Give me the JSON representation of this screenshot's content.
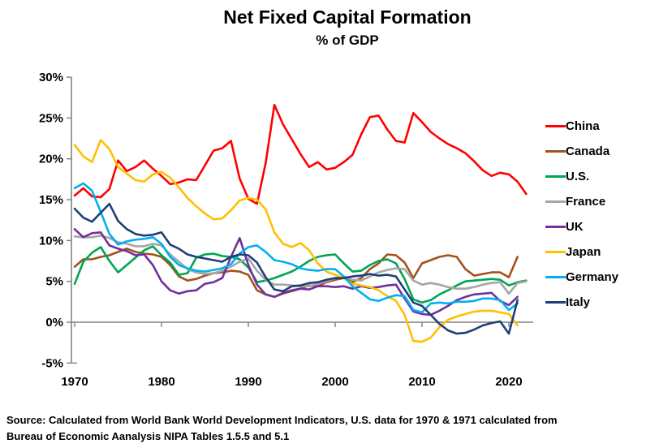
{
  "title": "Net Fixed Capital Formation",
  "subtitle": "% of GDP",
  "source": {
    "line1": "Source:  Calculated from World Bank World Development Indicators, U.S. data for 1970 & 1971 calculated from",
    "line2": "Bureau of Economic Aanalysis NIPA Tables 1.5.5 and 5.1"
  },
  "axis_color": "#808080",
  "chart_data": {
    "type": "line",
    "title": "Net Fixed Capital Formation",
    "subtitle": "% of GDP",
    "xlabel": "",
    "ylabel": "",
    "xlim": [
      1970,
      2022
    ],
    "ylim": [
      -5,
      30
    ],
    "grid": false,
    "legend_position": "right",
    "zero_line": true,
    "x_ticks": [
      1970,
      1980,
      1990,
      2000,
      2010,
      2020
    ],
    "x_tick_labels": [
      "1970",
      "1980",
      "1990",
      "2000",
      "2010",
      "2020"
    ],
    "y_ticks": [
      30,
      25,
      20,
      15,
      10,
      5,
      0,
      -5
    ],
    "y_tick_labels": [
      "30%",
      "25%",
      "20%",
      "15%",
      "10%",
      "5%",
      "0%",
      "-5%"
    ],
    "x": [
      1970,
      1971,
      1972,
      1973,
      1974,
      1975,
      1976,
      1977,
      1978,
      1979,
      1980,
      1981,
      1982,
      1983,
      1984,
      1985,
      1986,
      1987,
      1988,
      1989,
      1990,
      1991,
      1992,
      1993,
      1994,
      1995,
      1996,
      1997,
      1998,
      1999,
      2000,
      2001,
      2002,
      2003,
      2004,
      2005,
      2006,
      2007,
      2008,
      2009,
      2010,
      2011,
      2012,
      2013,
      2014,
      2015,
      2016,
      2017,
      2018,
      2019,
      2020,
      2021,
      2022
    ],
    "series": [
      {
        "name": "China",
        "color": "#FF0000",
        "values": [
          15.5,
          16.4,
          15.4,
          15.3,
          16.3,
          19.8,
          18.5,
          19.0,
          19.8,
          18.8,
          17.9,
          16.9,
          17.1,
          17.5,
          17.4,
          19.2,
          21.0,
          21.3,
          22.2,
          17.6,
          15.1,
          14.5,
          19.5,
          26.6,
          24.2,
          22.4,
          20.6,
          19.0,
          19.6,
          18.7,
          18.9,
          19.6,
          20.5,
          23.0,
          25.1,
          25.3,
          23.6,
          22.2,
          22.0,
          25.6,
          24.5,
          23.3,
          22.5,
          21.8,
          21.3,
          20.7,
          19.7,
          18.6,
          17.9,
          18.3,
          18.1,
          17.2,
          15.7
        ]
      },
      {
        "name": "Canada",
        "color": "#A0521D",
        "values": [
          6.8,
          7.7,
          7.7,
          8.0,
          8.2,
          8.6,
          9.0,
          8.6,
          8.4,
          8.3,
          8.0,
          7.0,
          5.6,
          5.1,
          5.3,
          5.7,
          6.0,
          6.1,
          6.3,
          6.2,
          5.8,
          3.9,
          3.4,
          3.1,
          3.5,
          3.8,
          4.1,
          4.5,
          4.4,
          4.9,
          5.2,
          5.4,
          4.9,
          5.4,
          6.5,
          7.2,
          8.3,
          8.2,
          7.3,
          5.4,
          7.2,
          7.6,
          8.0,
          8.2,
          8.0,
          6.5,
          5.7,
          5.9,
          6.1,
          6.1,
          5.5,
          8.0,
          null
        ]
      },
      {
        "name": "U.S.",
        "color": "#00A550",
        "values": [
          4.7,
          7.4,
          8.5,
          9.2,
          7.5,
          6.1,
          7.0,
          7.9,
          8.8,
          9.3,
          8.2,
          7.3,
          5.8,
          6.0,
          7.9,
          8.3,
          8.4,
          8.1,
          8.0,
          7.7,
          6.7,
          4.9,
          5.1,
          5.4,
          5.8,
          6.2,
          6.8,
          7.5,
          8.0,
          8.2,
          8.3,
          7.2,
          6.2,
          6.3,
          7.0,
          7.5,
          7.7,
          7.2,
          5.3,
          2.8,
          2.4,
          2.7,
          3.4,
          3.9,
          4.5,
          5.0,
          5.1,
          5.2,
          5.3,
          5.2,
          4.5,
          4.9,
          5.1
        ]
      },
      {
        "name": "France",
        "color": "#A6A6A6",
        "values": [
          10.5,
          10.4,
          10.4,
          10.6,
          10.3,
          9.8,
          9.6,
          9.3,
          9.3,
          9.6,
          9.4,
          8.3,
          7.4,
          6.5,
          6.1,
          5.9,
          6.0,
          6.3,
          6.8,
          7.4,
          7.8,
          6.3,
          5.2,
          4.6,
          4.6,
          4.5,
          4.4,
          4.4,
          4.7,
          5.0,
          5.4,
          5.6,
          5.2,
          5.1,
          5.6,
          6.1,
          6.4,
          6.6,
          6.5,
          5.1,
          4.6,
          4.8,
          4.6,
          4.3,
          4.1,
          4.1,
          4.3,
          4.6,
          4.8,
          4.9,
          3.5,
          4.8,
          5.0
        ]
      },
      {
        "name": "UK",
        "color": "#7030A0",
        "values": [
          11.4,
          10.4,
          10.9,
          11.0,
          9.4,
          9.0,
          8.7,
          8.2,
          8.3,
          7.0,
          5.0,
          3.9,
          3.5,
          3.8,
          3.9,
          4.7,
          4.9,
          5.4,
          8.0,
          10.3,
          7.0,
          4.6,
          3.4,
          3.1,
          3.6,
          3.9,
          4.1,
          4.0,
          4.4,
          4.4,
          4.3,
          4.4,
          4.1,
          4.4,
          4.2,
          4.3,
          4.5,
          4.6,
          2.9,
          1.3,
          1.0,
          0.9,
          1.4,
          2.0,
          2.7,
          3.1,
          3.4,
          3.5,
          3.6,
          2.6,
          2.1,
          3.1,
          null
        ]
      },
      {
        "name": "Japan",
        "color": "#FFC000",
        "values": [
          21.7,
          20.3,
          19.6,
          22.3,
          21.2,
          19.0,
          18.2,
          17.4,
          17.2,
          18.1,
          18.4,
          17.7,
          16.5,
          15.2,
          14.2,
          13.3,
          12.6,
          12.7,
          13.7,
          14.9,
          15.2,
          15.0,
          13.8,
          11.0,
          9.6,
          9.2,
          9.7,
          8.8,
          7.2,
          6.2,
          5.8,
          5.4,
          4.7,
          4.5,
          4.3,
          3.9,
          3.2,
          2.6,
          0.9,
          -2.3,
          -2.4,
          -1.9,
          -0.6,
          0.3,
          0.7,
          1.0,
          1.3,
          1.4,
          1.4,
          1.2,
          1.0,
          -0.4,
          null
        ]
      },
      {
        "name": "Germany",
        "color": "#00B0F0",
        "values": [
          16.4,
          17.0,
          16.1,
          13.5,
          10.8,
          9.5,
          9.9,
          10.1,
          10.2,
          10.4,
          9.6,
          8.0,
          7.0,
          6.6,
          6.3,
          6.2,
          6.4,
          6.6,
          7.1,
          8.4,
          9.2,
          9.4,
          8.6,
          7.6,
          7.4,
          7.1,
          6.6,
          6.4,
          6.3,
          6.5,
          6.5,
          5.6,
          4.4,
          3.6,
          2.8,
          2.6,
          3.0,
          3.3,
          3.2,
          1.5,
          1.2,
          2.3,
          2.4,
          2.3,
          2.5,
          2.5,
          2.6,
          2.9,
          2.9,
          2.7,
          1.5,
          2.3,
          null
        ]
      },
      {
        "name": "Italy",
        "color": "#1F3F77",
        "values": [
          13.9,
          12.8,
          12.3,
          13.4,
          14.5,
          12.4,
          11.4,
          10.8,
          10.6,
          10.7,
          11.0,
          9.5,
          9.0,
          8.3,
          8.0,
          7.8,
          7.6,
          7.4,
          8.0,
          8.3,
          8.2,
          7.3,
          5.5,
          4.0,
          3.8,
          4.4,
          4.5,
          4.8,
          4.9,
          5.2,
          5.4,
          5.4,
          5.6,
          5.7,
          5.9,
          5.7,
          5.8,
          5.6,
          4.0,
          2.4,
          2.0,
          0.9,
          -0.2,
          -1.0,
          -1.4,
          -1.3,
          -0.9,
          -0.4,
          -0.1,
          0.1,
          -1.4,
          2.7,
          null
        ]
      }
    ]
  }
}
